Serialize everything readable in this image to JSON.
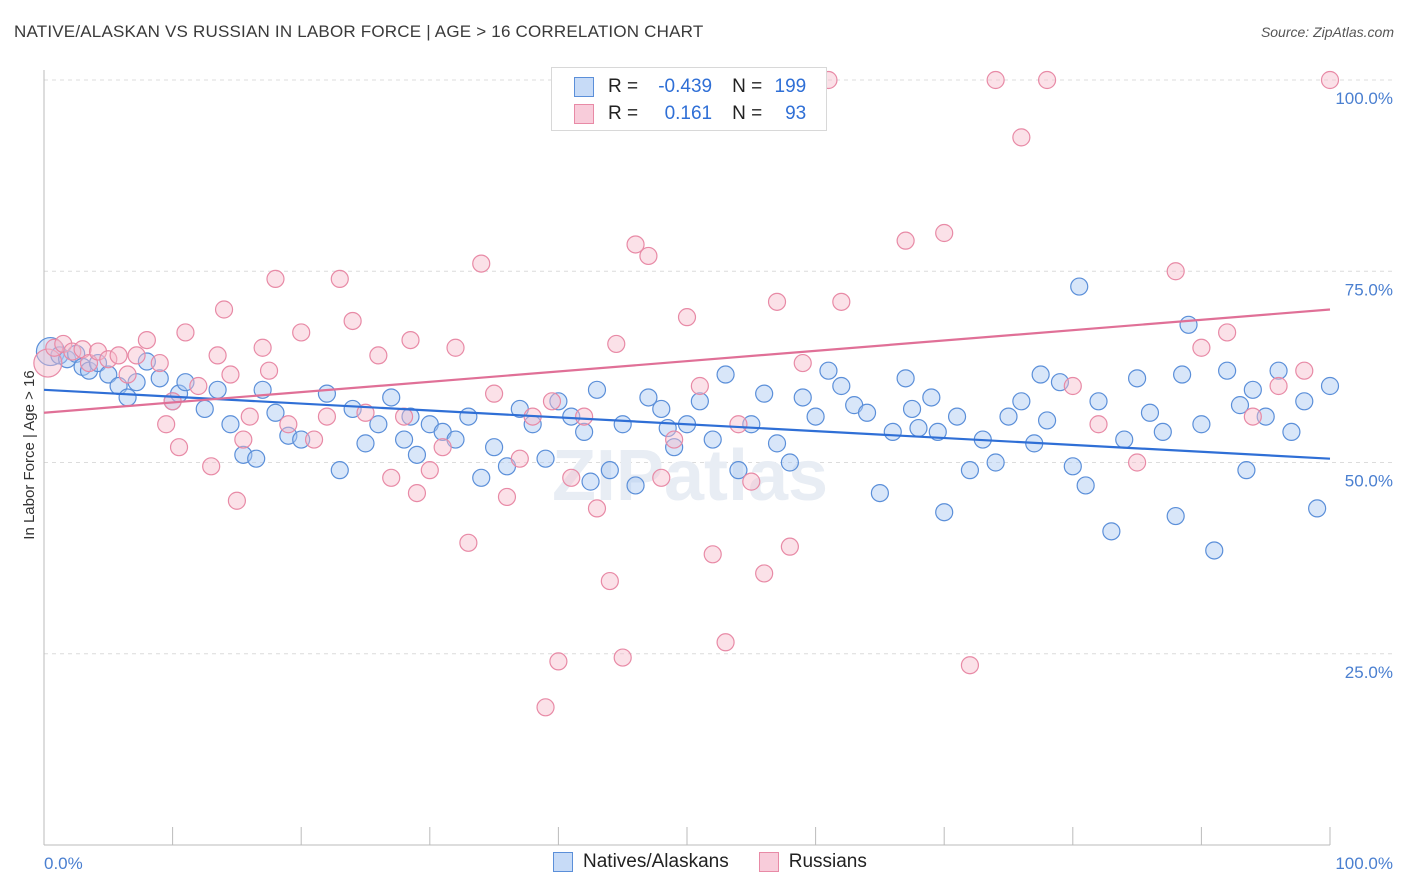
{
  "header": {
    "title": "NATIVE/ALASKAN VS RUSSIAN IN LABOR FORCE | AGE > 16 CORRELATION CHART",
    "source": "Source: ZipAtlas.com"
  },
  "legend": {
    "r_label": "R =",
    "n_label": "N =",
    "rows": [
      {
        "r": "-0.439",
        "n": "199"
      },
      {
        "r": "0.161",
        "n": "93"
      }
    ]
  },
  "bottom_legend": [
    "Natives/Alaskans",
    "Russians"
  ],
  "watermark": "ZIPatlas",
  "colors": {
    "blue_fill": "#a9c8f2",
    "blue_stroke": "#5b8fd9",
    "blue_line": "#2f6fd6",
    "pink_fill": "#f6bccd",
    "pink_stroke": "#e88aa6",
    "pink_line": "#e07097",
    "tick_text": "#4a7fd0"
  },
  "chart_data": {
    "type": "scatter",
    "title": "NATIVE/ALASKAN VS RUSSIAN IN LABOR FORCE | AGE > 16 CORRELATION CHART",
    "xlabel": "",
    "ylabel": "In Labor Force | Age > 16",
    "xlim": [
      0,
      100
    ],
    "ylim": [
      0,
      102
    ],
    "x_ticks": [
      "0.0%",
      "100.0%"
    ],
    "y_ticks": [
      {
        "value": 25,
        "label": "25.0%"
      },
      {
        "value": 50,
        "label": "50.0%"
      },
      {
        "value": 75,
        "label": "75.0%"
      },
      {
        "value": 100,
        "label": "100.0%"
      }
    ],
    "grid": "horizontal dashed",
    "legend_position": "top-center",
    "series": [
      {
        "name": "Natives/Alaskans",
        "r": -0.439,
        "n": 199,
        "trend": [
          [
            0,
            59.5
          ],
          [
            100,
            50.5
          ]
        ],
        "points": [
          [
            0.5,
            64.5
          ],
          [
            1.2,
            64
          ],
          [
            1.8,
            63.5
          ],
          [
            2.5,
            64.2
          ],
          [
            3,
            62.5
          ],
          [
            3.5,
            62
          ],
          [
            4.2,
            63
          ],
          [
            5,
            61.5
          ],
          [
            5.8,
            60
          ],
          [
            6.5,
            58.5
          ],
          [
            7.2,
            60.5
          ],
          [
            8,
            63.2
          ],
          [
            9,
            61
          ],
          [
            10,
            58
          ],
          [
            10.5,
            59
          ],
          [
            11,
            60.5
          ],
          [
            12.5,
            57
          ],
          [
            13.5,
            59.5
          ],
          [
            14.5,
            55
          ],
          [
            15.5,
            51
          ],
          [
            16.5,
            50.5
          ],
          [
            17,
            59.5
          ],
          [
            18,
            56.5
          ],
          [
            19,
            53.5
          ],
          [
            20,
            53
          ],
          [
            22,
            59
          ],
          [
            23,
            49
          ],
          [
            24,
            57
          ],
          [
            25,
            52.5
          ],
          [
            26,
            55
          ],
          [
            27,
            58.5
          ],
          [
            28,
            53
          ],
          [
            28.5,
            56
          ],
          [
            29,
            51
          ],
          [
            30,
            55
          ],
          [
            31,
            54
          ],
          [
            32,
            53
          ],
          [
            33,
            56
          ],
          [
            34,
            48
          ],
          [
            35,
            52
          ],
          [
            36,
            49.5
          ],
          [
            37,
            57
          ],
          [
            38,
            55
          ],
          [
            39,
            50.5
          ],
          [
            40,
            58
          ],
          [
            41,
            56
          ],
          [
            42,
            54
          ],
          [
            42.5,
            47.5
          ],
          [
            43,
            59.5
          ],
          [
            44,
            49
          ],
          [
            45,
            55
          ],
          [
            46,
            47
          ],
          [
            47,
            58.5
          ],
          [
            48,
            57
          ],
          [
            48.5,
            54.5
          ],
          [
            49,
            52
          ],
          [
            50,
            55
          ],
          [
            51,
            58
          ],
          [
            52,
            53
          ],
          [
            53,
            61.5
          ],
          [
            54,
            49
          ],
          [
            55,
            55
          ],
          [
            56,
            59
          ],
          [
            57,
            52.5
          ],
          [
            58,
            50
          ],
          [
            59,
            58.5
          ],
          [
            60,
            56
          ],
          [
            61,
            62
          ],
          [
            62,
            60
          ],
          [
            63,
            57.5
          ],
          [
            64,
            56.5
          ],
          [
            65,
            46
          ],
          [
            66,
            54
          ],
          [
            67,
            61
          ],
          [
            67.5,
            57
          ],
          [
            68,
            54.5
          ],
          [
            69,
            58.5
          ],
          [
            69.5,
            54
          ],
          [
            70,
            43.5
          ],
          [
            71,
            56
          ],
          [
            72,
            49
          ],
          [
            73,
            53
          ],
          [
            74,
            50
          ],
          [
            75,
            56
          ],
          [
            76,
            58
          ],
          [
            77,
            52.5
          ],
          [
            77.5,
            61.5
          ],
          [
            78,
            55.5
          ],
          [
            79,
            60.5
          ],
          [
            80,
            49.5
          ],
          [
            80.5,
            73
          ],
          [
            81,
            47
          ],
          [
            82,
            58
          ],
          [
            83,
            41
          ],
          [
            84,
            53
          ],
          [
            85,
            61
          ],
          [
            86,
            56.5
          ],
          [
            87,
            54
          ],
          [
            88,
            43
          ],
          [
            88.5,
            61.5
          ],
          [
            89,
            68
          ],
          [
            90,
            55
          ],
          [
            91,
            38.5
          ],
          [
            92,
            62
          ],
          [
            93,
            57.5
          ],
          [
            93.5,
            49
          ],
          [
            94,
            59.5
          ],
          [
            95,
            56
          ],
          [
            96,
            62
          ],
          [
            97,
            54
          ],
          [
            98,
            58
          ],
          [
            99,
            44
          ],
          [
            100,
            60
          ]
        ]
      },
      {
        "name": "Russians",
        "r": 0.161,
        "n": 93,
        "trend": [
          [
            0,
            56.5
          ],
          [
            100,
            70
          ]
        ],
        "points": [
          [
            0.3,
            63
          ],
          [
            0.8,
            65
          ],
          [
            1.5,
            65.5
          ],
          [
            2.2,
            64.5
          ],
          [
            3,
            64.8
          ],
          [
            3.5,
            63
          ],
          [
            4.2,
            64.5
          ],
          [
            5,
            63.5
          ],
          [
            5.8,
            64
          ],
          [
            6.5,
            61.5
          ],
          [
            7.2,
            64
          ],
          [
            8,
            66
          ],
          [
            9,
            63
          ],
          [
            9.5,
            55
          ],
          [
            10,
            58
          ],
          [
            10.5,
            52
          ],
          [
            11,
            67
          ],
          [
            12,
            60
          ],
          [
            13,
            49.5
          ],
          [
            13.5,
            64
          ],
          [
            14,
            70
          ],
          [
            14.5,
            61.5
          ],
          [
            15,
            45
          ],
          [
            15.5,
            53
          ],
          [
            16,
            56
          ],
          [
            17,
            65
          ],
          [
            17.5,
            62
          ],
          [
            18,
            74
          ],
          [
            19,
            55
          ],
          [
            20,
            67
          ],
          [
            21,
            53
          ],
          [
            22,
            56
          ],
          [
            23,
            74
          ],
          [
            24,
            68.5
          ],
          [
            25,
            56.5
          ],
          [
            26,
            64
          ],
          [
            27,
            48
          ],
          [
            28,
            56
          ],
          [
            28.5,
            66
          ],
          [
            29,
            46
          ],
          [
            30,
            49
          ],
          [
            31,
            52
          ],
          [
            32,
            65
          ],
          [
            33,
            39.5
          ],
          [
            34,
            76
          ],
          [
            35,
            59
          ],
          [
            36,
            45.5
          ],
          [
            37,
            50.5
          ],
          [
            38,
            56
          ],
          [
            39,
            18
          ],
          [
            39.5,
            58
          ],
          [
            40,
            24
          ],
          [
            41,
            48
          ],
          [
            42,
            56
          ],
          [
            43,
            44
          ],
          [
            44,
            34.5
          ],
          [
            44.5,
            65.5
          ],
          [
            45,
            24.5
          ],
          [
            46,
            78.5
          ],
          [
            47,
            77
          ],
          [
            48,
            48
          ],
          [
            49,
            53
          ],
          [
            50,
            69
          ],
          [
            51,
            60
          ],
          [
            52,
            38
          ],
          [
            53,
            26.5
          ],
          [
            54,
            55
          ],
          [
            55,
            47.5
          ],
          [
            56,
            35.5
          ],
          [
            57,
            71
          ],
          [
            58,
            39
          ],
          [
            59,
            63
          ],
          [
            60,
            100
          ],
          [
            61,
            100
          ],
          [
            62,
            71
          ],
          [
            67,
            79
          ],
          [
            70,
            80
          ],
          [
            72,
            23.5
          ],
          [
            74,
            100
          ],
          [
            76,
            92.5
          ],
          [
            78,
            100
          ],
          [
            80,
            60
          ],
          [
            82,
            55
          ],
          [
            85,
            50
          ],
          [
            88,
            75
          ],
          [
            90,
            65
          ],
          [
            92,
            67
          ],
          [
            94,
            56
          ],
          [
            96,
            60
          ],
          [
            98,
            62
          ],
          [
            100,
            100
          ]
        ]
      }
    ]
  }
}
